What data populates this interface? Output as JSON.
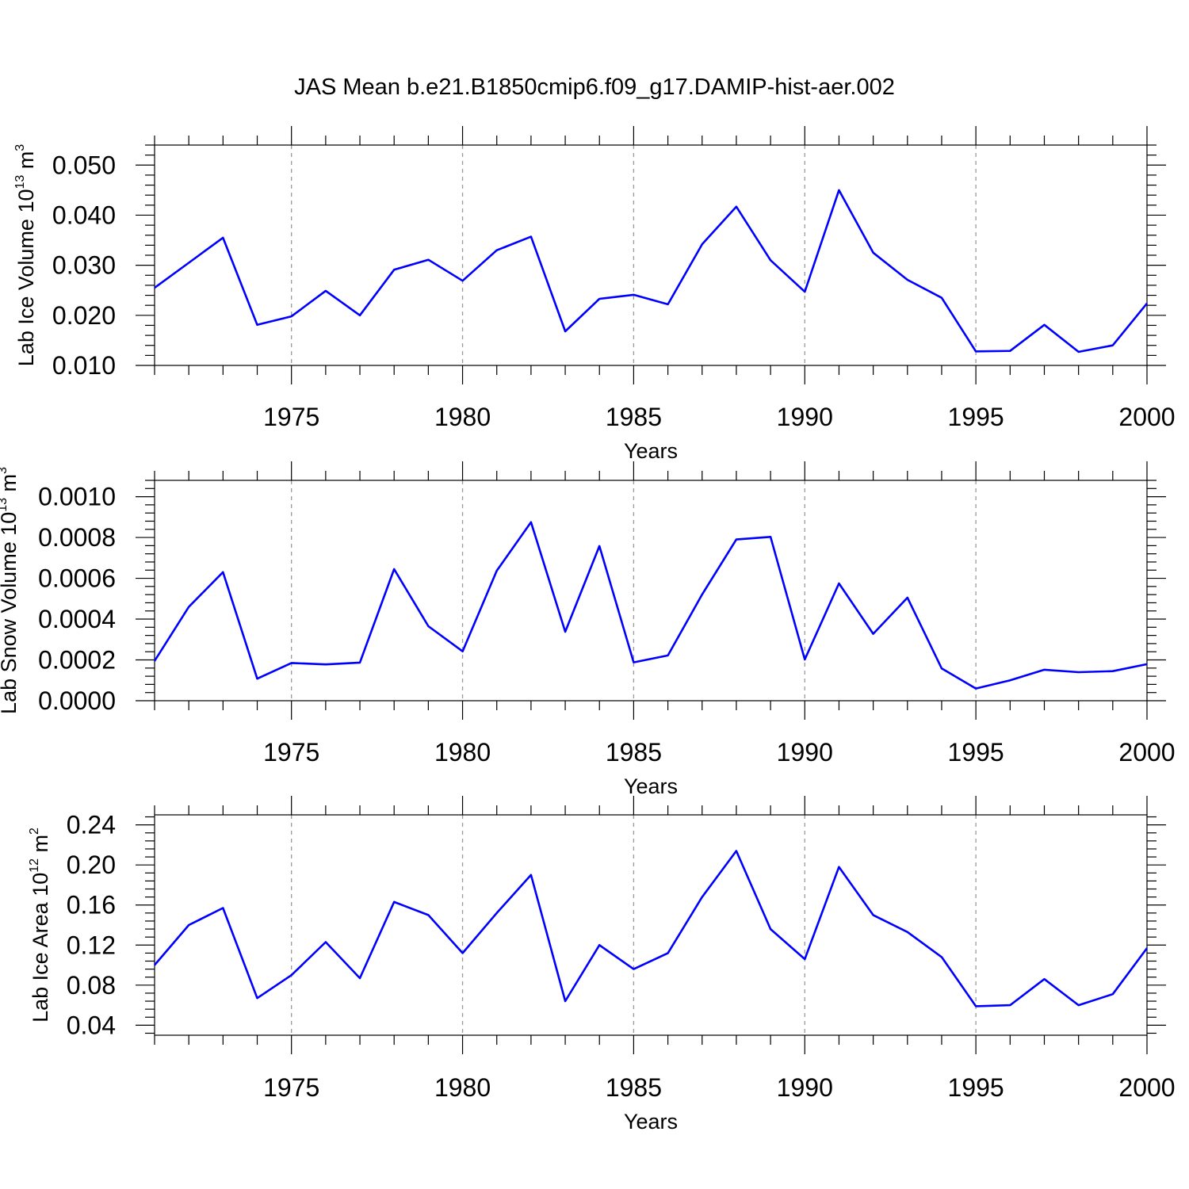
{
  "figure": {
    "title": "JAS Mean b.e21.B1850cmip6.f09_g17.DAMIP-hist-aer.002"
  },
  "chart_data": [
    {
      "type": "line",
      "ylabel_main": "Lab Ice Volume 10",
      "ylabel_exp": "13",
      "ylabel_unit": " m",
      "ylabel_unit_exp": "3",
      "xlabel": "Years",
      "xlim": [
        1971,
        2000
      ],
      "ylim": [
        0.01,
        0.054
      ],
      "x_ticks": [
        1975,
        1980,
        1985,
        1990,
        1995,
        2000
      ],
      "y_ticks": [
        "0.010",
        "0.020",
        "0.030",
        "0.040",
        "0.050"
      ],
      "x": [
        1971,
        1972,
        1973,
        1974,
        1975,
        1976,
        1977,
        1978,
        1979,
        1980,
        1981,
        1982,
        1983,
        1984,
        1985,
        1986,
        1987,
        1988,
        1989,
        1990,
        1991,
        1992,
        1993,
        1994,
        1995,
        1996,
        1997,
        1998,
        1999,
        2000
      ],
      "values": [
        0.0255,
        0.0305,
        0.0355,
        0.0181,
        0.0198,
        0.0249,
        0.02,
        0.0291,
        0.0311,
        0.0269,
        0.033,
        0.0357,
        0.0168,
        0.0233,
        0.0241,
        0.0222,
        0.0342,
        0.0417,
        0.031,
        0.0247,
        0.045,
        0.0325,
        0.0271,
        0.0235,
        0.0128,
        0.0129,
        0.0181,
        0.0127,
        0.014,
        0.0224
      ],
      "color": "#0000ff"
    },
    {
      "type": "line",
      "ylabel_main": "Lab Snow Volume 10",
      "ylabel_exp": "13",
      "ylabel_unit": " m",
      "ylabel_unit_exp": "3",
      "xlabel": "Years",
      "xlim": [
        1971,
        2000
      ],
      "ylim": [
        0.0,
        0.00108
      ],
      "x_ticks": [
        1975,
        1980,
        1985,
        1990,
        1995,
        2000
      ],
      "y_ticks": [
        "0.0000",
        "0.0002",
        "0.0004",
        "0.0006",
        "0.0008",
        "0.0010"
      ],
      "x": [
        1971,
        1972,
        1973,
        1974,
        1975,
        1976,
        1977,
        1978,
        1979,
        1980,
        1981,
        1982,
        1983,
        1984,
        1985,
        1986,
        1987,
        1988,
        1989,
        1990,
        1991,
        1992,
        1993,
        1994,
        1995,
        1996,
        1997,
        1998,
        1999,
        2000
      ],
      "values": [
        0.000195,
        0.00046,
        0.00063,
        0.000108,
        0.000185,
        0.000178,
        0.000187,
        0.000645,
        0.000365,
        0.000242,
        0.000637,
        0.000875,
        0.000338,
        0.000758,
        0.000188,
        0.000222,
        0.000521,
        0.00079,
        0.000803,
        0.000202,
        0.000575,
        0.000328,
        0.000505,
        0.000158,
        6e-05,
        0.0001,
        0.000152,
        0.00014,
        0.000145,
        0.000179
      ],
      "color": "#0000ff"
    },
    {
      "type": "line",
      "ylabel_main": "Lab Ice Area 10",
      "ylabel_exp": "12",
      "ylabel_unit": " m",
      "ylabel_unit_exp": "2",
      "xlabel": "Years",
      "xlim": [
        1971,
        2000
      ],
      "ylim": [
        0.03,
        0.25
      ],
      "x_ticks": [
        1975,
        1980,
        1985,
        1990,
        1995,
        2000
      ],
      "y_ticks": [
        "0.04",
        "0.08",
        "0.12",
        "0.16",
        "0.20",
        "0.24"
      ],
      "x": [
        1971,
        1972,
        1973,
        1974,
        1975,
        1976,
        1977,
        1978,
        1979,
        1980,
        1981,
        1982,
        1983,
        1984,
        1985,
        1986,
        1987,
        1988,
        1989,
        1990,
        1991,
        1992,
        1993,
        1994,
        1995,
        1996,
        1997,
        1998,
        1999,
        2000
      ],
      "values": [
        0.1,
        0.14,
        0.157,
        0.067,
        0.09,
        0.123,
        0.087,
        0.163,
        0.15,
        0.112,
        0.152,
        0.19,
        0.064,
        0.12,
        0.096,
        0.112,
        0.168,
        0.214,
        0.136,
        0.106,
        0.198,
        0.15,
        0.133,
        0.108,
        0.059,
        0.06,
        0.086,
        0.06,
        0.071,
        0.117
      ],
      "color": "#0000ff"
    }
  ]
}
